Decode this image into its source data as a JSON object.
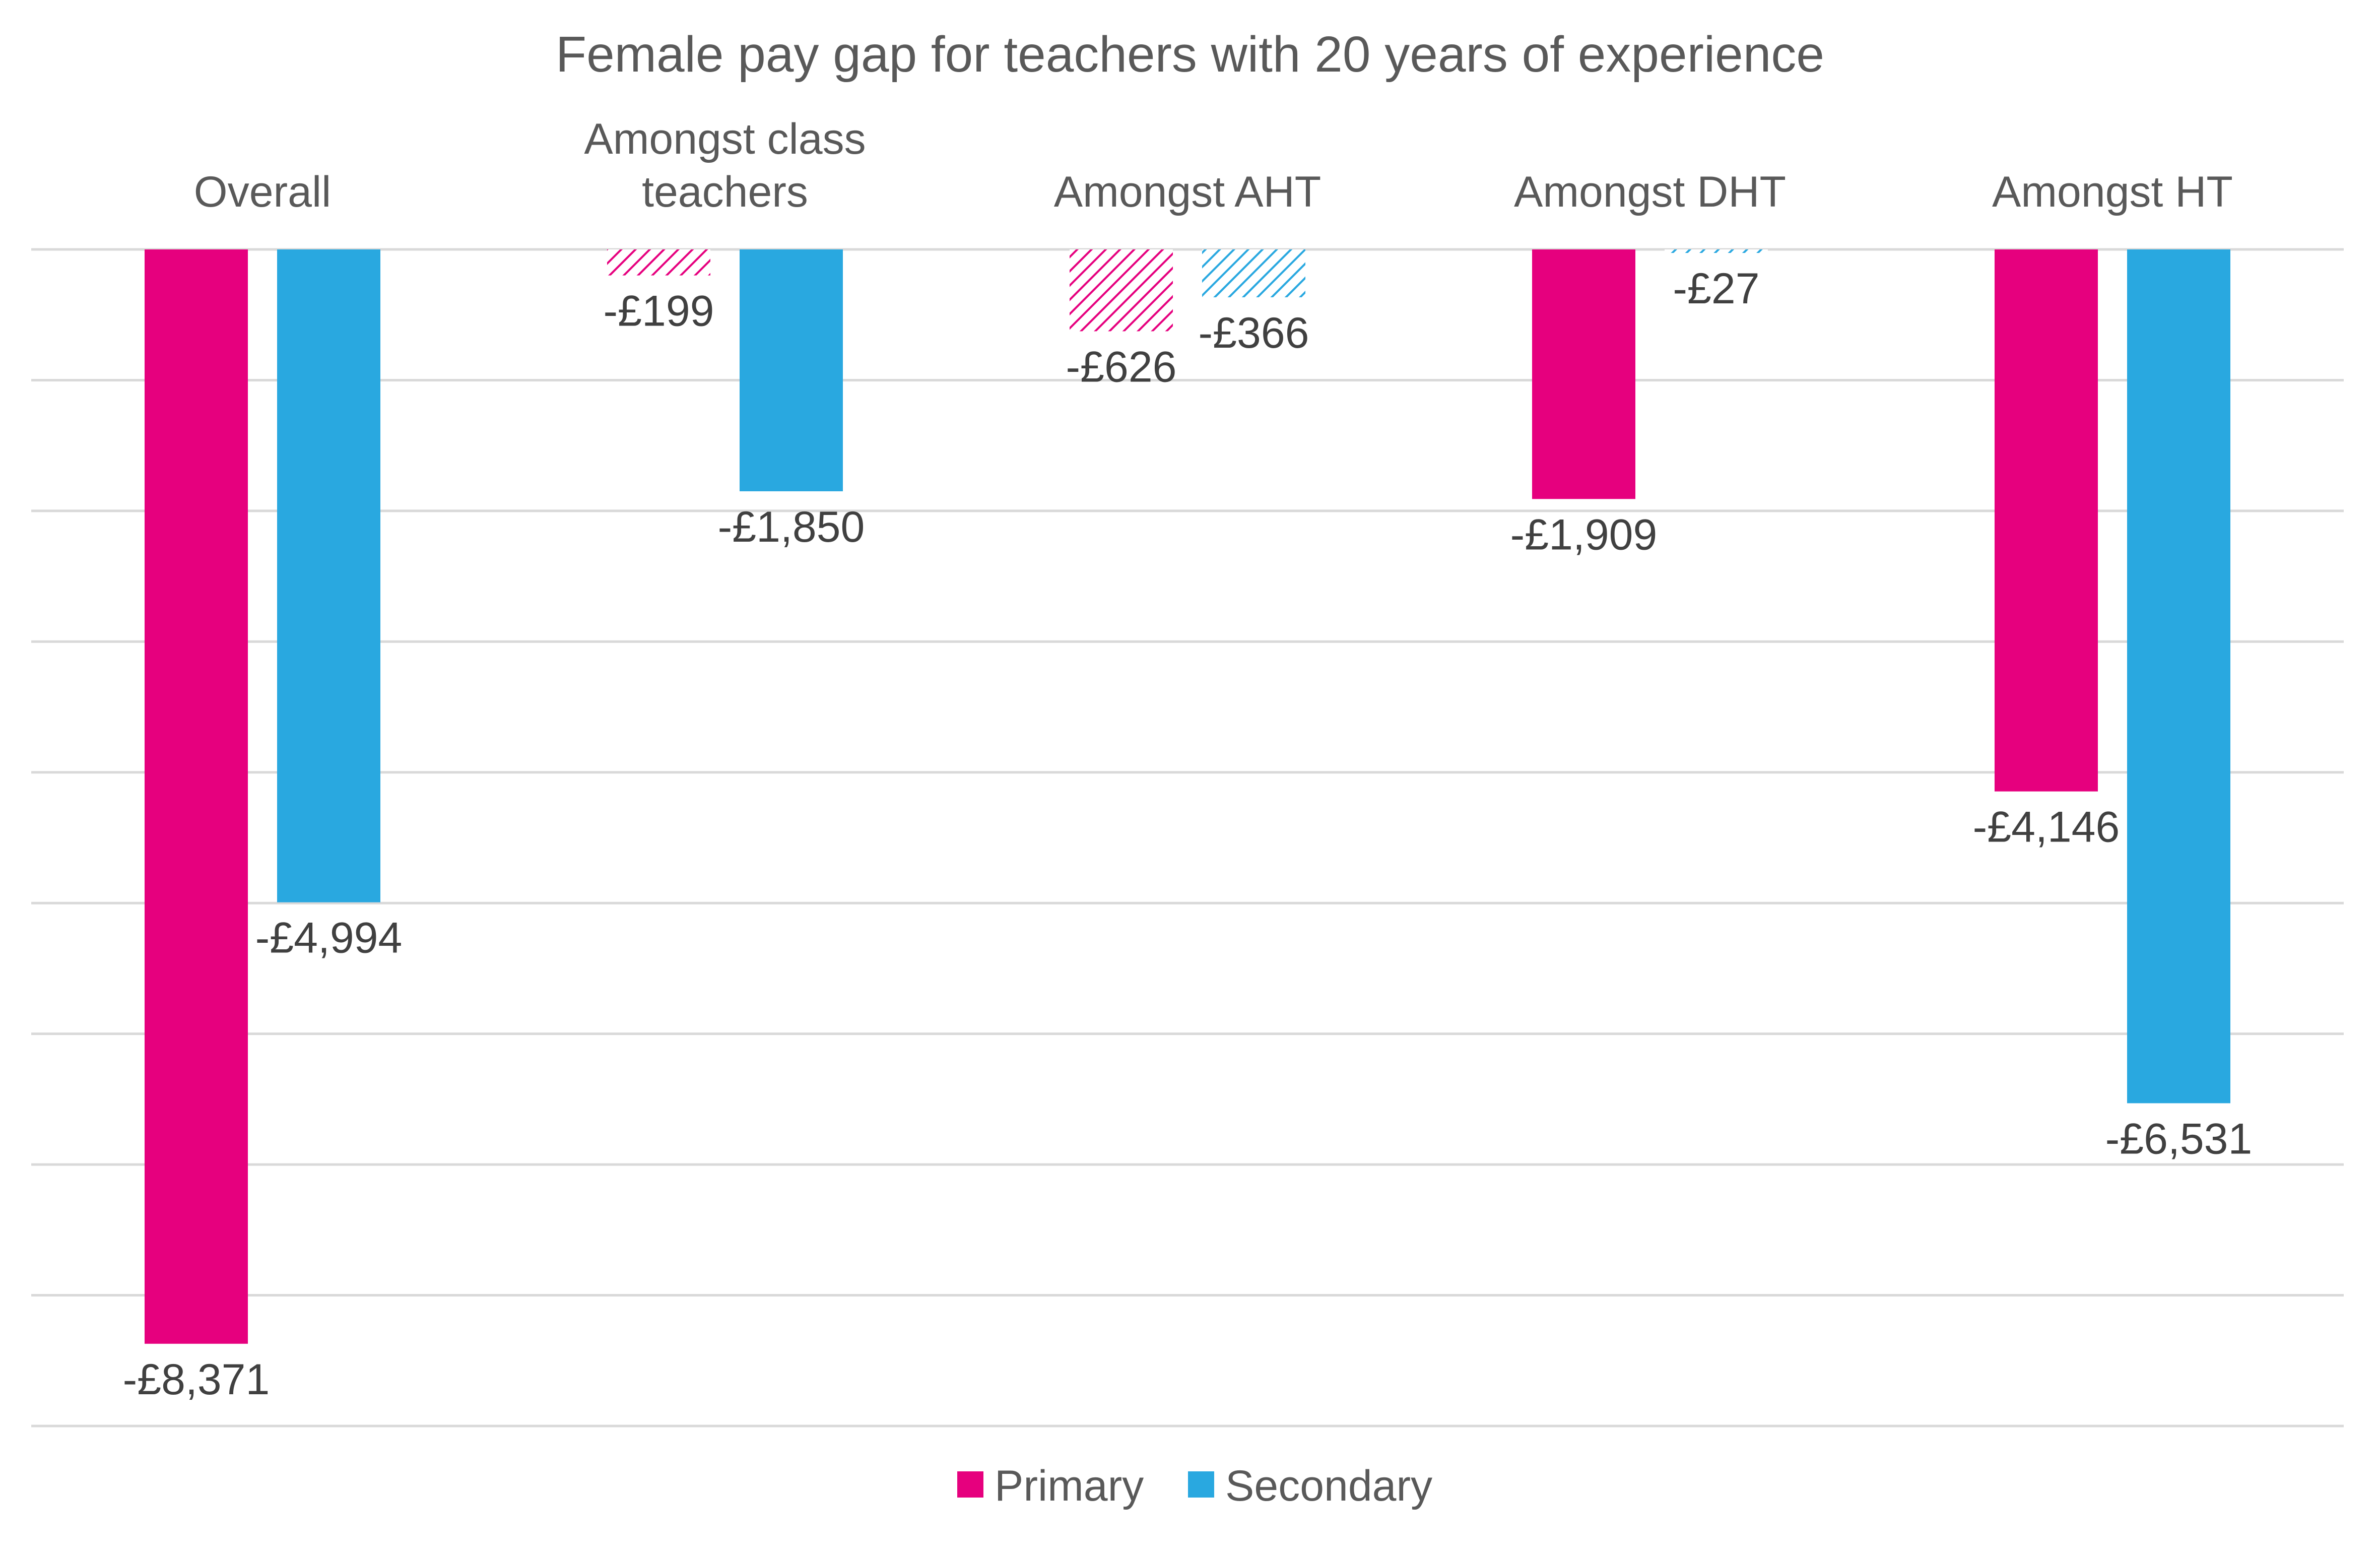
{
  "chart_data": {
    "type": "bar",
    "title": "Female pay gap for teachers with 20 years of experience",
    "categories": [
      "Overall",
      "Amongst class teachers",
      "Amongst AHT",
      "Amongst DHT",
      "Amongst HT"
    ],
    "category_lines": [
      [
        "Overall"
      ],
      [
        "Amongst class",
        "teachers"
      ],
      [
        "Amongst AHT"
      ],
      [
        "Amongst DHT"
      ],
      [
        "Amongst HT"
      ]
    ],
    "series": [
      {
        "name": "Primary",
        "color": "#e6007e",
        "values": [
          -8371,
          -199,
          -626,
          -1909,
          -4146
        ],
        "labels": [
          "-£8,371",
          "-£199",
          "-£626",
          "-£1,909",
          "-£4,146"
        ],
        "hatched": [
          false,
          true,
          true,
          false,
          false
        ]
      },
      {
        "name": "Secondary",
        "color": "#29a8e0",
        "values": [
          -4994,
          -1850,
          -366,
          -27,
          -6531
        ],
        "labels": [
          "-£4,994",
          "-£1,850",
          "-£366",
          "-£27",
          "-£6,531"
        ],
        "hatched": [
          false,
          false,
          true,
          true,
          false
        ]
      }
    ],
    "ylim": [
      -9000,
      0
    ],
    "grid": true,
    "legend": "bottom",
    "xlabel": "",
    "ylabel": ""
  }
}
